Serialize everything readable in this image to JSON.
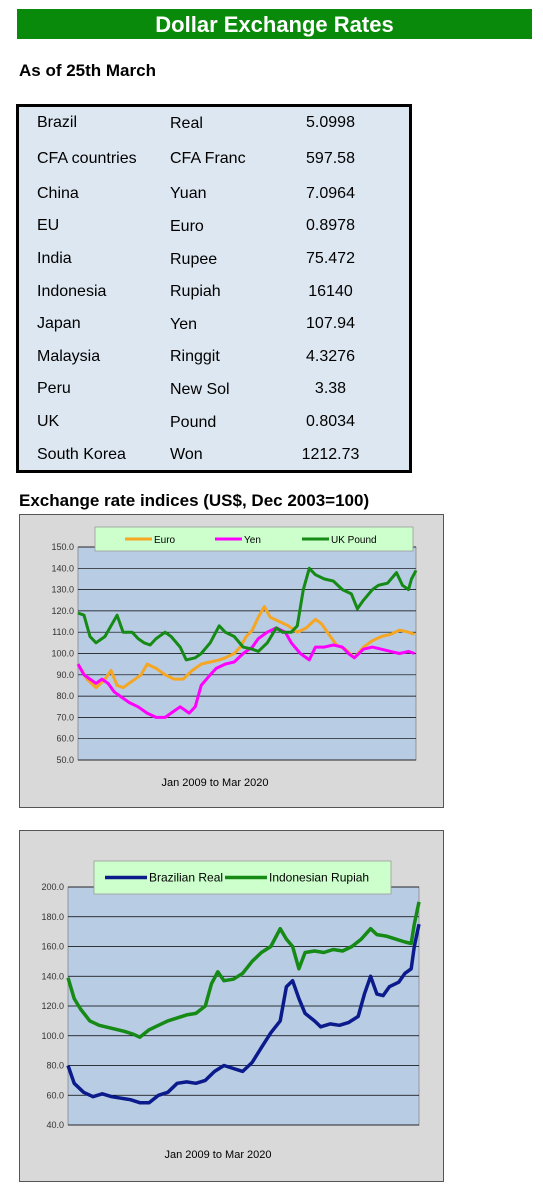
{
  "header": {
    "title": "Dollar Exchange Rates",
    "as_of": "As of 25th March"
  },
  "rates": [
    {
      "country": "Brazil",
      "currency": "Real",
      "rate": "5.0998"
    },
    {
      "country": "CFA countries",
      "currency": "CFA Franc",
      "rate": "597.58"
    },
    {
      "country": "China",
      "currency": "Yuan",
      "rate": "7.0964"
    },
    {
      "country": "EU",
      "currency": "Euro",
      "rate": "0.8978"
    },
    {
      "country": "India",
      "currency": "Rupee",
      "rate": "75.472"
    },
    {
      "country": "Indonesia",
      "currency": "Rupiah",
      "rate": "16140"
    },
    {
      "country": "Japan",
      "currency": "Yen",
      "rate": "107.94"
    },
    {
      "country": "Malaysia",
      "currency": "Ringgit",
      "rate": "4.3276"
    },
    {
      "country": "Peru",
      "currency": "New Sol",
      "rate": "3.38"
    },
    {
      "country": "UK",
      "currency": "Pound",
      "rate": "0.8034"
    },
    {
      "country": "South Korea",
      "currency": "Won",
      "rate": "1212.73"
    }
  ],
  "indices_title": "Exchange rate indices (US$, Dec 2003=100)",
  "chart_data": [
    {
      "type": "line",
      "title": "",
      "xlabel": "Jan 2009  to Mar 2020",
      "ylabel": "",
      "x_range": [
        2009.0,
        2020.25
      ],
      "ylim": [
        50,
        150
      ],
      "yticks": [
        "50.0",
        "60.0",
        "70.0",
        "80.0",
        "90.0",
        "100.0",
        "110.0",
        "120.0",
        "130.0",
        "140.0",
        "150.0"
      ],
      "grid": true,
      "legend": "top",
      "plot_bg": "#b8cce4",
      "series": [
        {
          "name": "Euro",
          "color": "#f5a623",
          "points": [
            [
              2009.0,
              95
            ],
            [
              2009.3,
              88
            ],
            [
              2009.6,
              84
            ],
            [
              2009.9,
              88
            ],
            [
              2010.1,
              92
            ],
            [
              2010.3,
              85
            ],
            [
              2010.5,
              84
            ],
            [
              2010.8,
              87
            ],
            [
              2011.1,
              90
            ],
            [
              2011.3,
              95
            ],
            [
              2011.6,
              93
            ],
            [
              2011.9,
              90
            ],
            [
              2012.2,
              88
            ],
            [
              2012.5,
              88
            ],
            [
              2012.8,
              92
            ],
            [
              2013.1,
              95
            ],
            [
              2013.4,
              96
            ],
            [
              2013.7,
              97
            ],
            [
              2013.9,
              98
            ],
            [
              2014.2,
              100
            ],
            [
              2014.4,
              103
            ],
            [
              2014.6,
              108
            ],
            [
              2014.8,
              111
            ],
            [
              2015.0,
              117
            ],
            [
              2015.2,
              122
            ],
            [
              2015.4,
              117
            ],
            [
              2015.7,
              115
            ],
            [
              2016.0,
              113
            ],
            [
              2016.3,
              110
            ],
            [
              2016.6,
              112
            ],
            [
              2016.9,
              116
            ],
            [
              2017.1,
              114
            ],
            [
              2017.4,
              108
            ],
            [
              2017.6,
              104
            ],
            [
              2017.9,
              102
            ],
            [
              2018.2,
              98
            ],
            [
              2018.5,
              103
            ],
            [
              2018.8,
              106
            ],
            [
              2019.1,
              108
            ],
            [
              2019.4,
              109
            ],
            [
              2019.7,
              111
            ],
            [
              2020.0,
              110
            ],
            [
              2020.2,
              109
            ]
          ]
        },
        {
          "name": "Yen",
          "color": "#ff00ff",
          "points": [
            [
              2009.0,
              95
            ],
            [
              2009.2,
              90
            ],
            [
              2009.4,
              88
            ],
            [
              2009.6,
              86
            ],
            [
              2009.8,
              88
            ],
            [
              2010.0,
              86
            ],
            [
              2010.2,
              82
            ],
            [
              2010.4,
              80
            ],
            [
              2010.7,
              77
            ],
            [
              2011.0,
              75
            ],
            [
              2011.3,
              72
            ],
            [
              2011.6,
              70
            ],
            [
              2011.9,
              70
            ],
            [
              2012.2,
              73
            ],
            [
              2012.4,
              75
            ],
            [
              2012.7,
              72
            ],
            [
              2012.9,
              75
            ],
            [
              2013.1,
              85
            ],
            [
              2013.4,
              90
            ],
            [
              2013.6,
              93
            ],
            [
              2013.9,
              95
            ],
            [
              2014.2,
              96
            ],
            [
              2014.5,
              100
            ],
            [
              2014.8,
              103
            ],
            [
              2015.0,
              107
            ],
            [
              2015.3,
              110
            ],
            [
              2015.6,
              112
            ],
            [
              2015.9,
              110
            ],
            [
              2016.1,
              105
            ],
            [
              2016.4,
              100
            ],
            [
              2016.7,
              97
            ],
            [
              2016.9,
              103
            ],
            [
              2017.2,
              103
            ],
            [
              2017.5,
              104
            ],
            [
              2017.8,
              103
            ],
            [
              2018.0,
              100
            ],
            [
              2018.2,
              98
            ],
            [
              2018.5,
              102
            ],
            [
              2018.8,
              103
            ],
            [
              2019.1,
              102
            ],
            [
              2019.4,
              101
            ],
            [
              2019.7,
              100
            ],
            [
              2020.0,
              101
            ],
            [
              2020.2,
              100
            ]
          ]
        },
        {
          "name": "UK Pound",
          "color": "#158a15",
          "points": [
            [
              2009.0,
              119
            ],
            [
              2009.2,
              118
            ],
            [
              2009.4,
              108
            ],
            [
              2009.6,
              105
            ],
            [
              2009.9,
              108
            ],
            [
              2010.1,
              113
            ],
            [
              2010.3,
              118
            ],
            [
              2010.5,
              110
            ],
            [
              2010.8,
              110
            ],
            [
              2011.0,
              107
            ],
            [
              2011.2,
              105
            ],
            [
              2011.4,
              104
            ],
            [
              2011.6,
              107
            ],
            [
              2011.9,
              110
            ],
            [
              2012.1,
              108
            ],
            [
              2012.4,
              103
            ],
            [
              2012.6,
              97
            ],
            [
              2012.9,
              98
            ],
            [
              2013.1,
              100
            ],
            [
              2013.4,
              105
            ],
            [
              2013.7,
              113
            ],
            [
              2013.9,
              110
            ],
            [
              2014.2,
              108
            ],
            [
              2014.5,
              103
            ],
            [
              2014.8,
              102
            ],
            [
              2015.0,
              101
            ],
            [
              2015.3,
              105
            ],
            [
              2015.6,
              112
            ],
            [
              2015.8,
              110
            ],
            [
              2016.1,
              110
            ],
            [
              2016.3,
              113
            ],
            [
              2016.5,
              130
            ],
            [
              2016.7,
              140
            ],
            [
              2016.9,
              137
            ],
            [
              2017.2,
              135
            ],
            [
              2017.5,
              134
            ],
            [
              2017.8,
              130
            ],
            [
              2018.1,
              128
            ],
            [
              2018.3,
              121
            ],
            [
              2018.5,
              125
            ],
            [
              2018.8,
              130
            ],
            [
              2019.0,
              132
            ],
            [
              2019.3,
              133
            ],
            [
              2019.6,
              138
            ],
            [
              2019.8,
              132
            ],
            [
              2020.0,
              130
            ],
            [
              2020.1,
              135
            ],
            [
              2020.25,
              139
            ]
          ]
        }
      ]
    },
    {
      "type": "line",
      "title": "",
      "xlabel": "Jan 2009  to Mar 2020",
      "ylabel": "",
      "x_range": [
        2009.0,
        2020.25
      ],
      "ylim": [
        40,
        200
      ],
      "yticks": [
        "40.0",
        "60.0",
        "80.0",
        "100.0",
        "120.0",
        "140.0",
        "160.0",
        "180.0",
        "200.0"
      ],
      "grid": true,
      "legend": "top",
      "plot_bg": "#b8cce4",
      "series": [
        {
          "name": "Brazilian Real",
          "color": "#0b1b8c",
          "points": [
            [
              2009.0,
              80
            ],
            [
              2009.2,
              68
            ],
            [
              2009.5,
              62
            ],
            [
              2009.8,
              59
            ],
            [
              2010.1,
              61
            ],
            [
              2010.4,
              59
            ],
            [
              2010.7,
              58
            ],
            [
              2011.0,
              57
            ],
            [
              2011.3,
              55
            ],
            [
              2011.6,
              55
            ],
            [
              2011.9,
              60
            ],
            [
              2012.2,
              62
            ],
            [
              2012.5,
              68
            ],
            [
              2012.8,
              69
            ],
            [
              2013.1,
              68
            ],
            [
              2013.4,
              70
            ],
            [
              2013.7,
              76
            ],
            [
              2014.0,
              80
            ],
            [
              2014.3,
              78
            ],
            [
              2014.6,
              76
            ],
            [
              2014.9,
              82
            ],
            [
              2015.2,
              92
            ],
            [
              2015.5,
              102
            ],
            [
              2015.8,
              110
            ],
            [
              2016.0,
              133
            ],
            [
              2016.2,
              137
            ],
            [
              2016.4,
              125
            ],
            [
              2016.6,
              115
            ],
            [
              2016.9,
              110
            ],
            [
              2017.1,
              106
            ],
            [
              2017.4,
              108
            ],
            [
              2017.7,
              107
            ],
            [
              2018.0,
              109
            ],
            [
              2018.3,
              113
            ],
            [
              2018.5,
              128
            ],
            [
              2018.7,
              140
            ],
            [
              2018.9,
              128
            ],
            [
              2019.1,
              127
            ],
            [
              2019.3,
              133
            ],
            [
              2019.6,
              136
            ],
            [
              2019.8,
              142
            ],
            [
              2020.0,
              145
            ],
            [
              2020.1,
              160
            ],
            [
              2020.25,
              175
            ]
          ]
        },
        {
          "name": "Indonesian Rupiah",
          "color": "#158a15",
          "points": [
            [
              2009.0,
              139
            ],
            [
              2009.2,
              125
            ],
            [
              2009.4,
              118
            ],
            [
              2009.7,
              110
            ],
            [
              2010.0,
              107
            ],
            [
              2010.4,
              105
            ],
            [
              2010.8,
              103
            ],
            [
              2011.1,
              101
            ],
            [
              2011.3,
              99
            ],
            [
              2011.6,
              104
            ],
            [
              2011.9,
              107
            ],
            [
              2012.2,
              110
            ],
            [
              2012.5,
              112
            ],
            [
              2012.8,
              114
            ],
            [
              2013.1,
              115
            ],
            [
              2013.4,
              120
            ],
            [
              2013.6,
              135
            ],
            [
              2013.8,
              143
            ],
            [
              2014.0,
              137
            ],
            [
              2014.3,
              138
            ],
            [
              2014.6,
              142
            ],
            [
              2014.9,
              150
            ],
            [
              2015.2,
              156
            ],
            [
              2015.5,
              160
            ],
            [
              2015.8,
              172
            ],
            [
              2016.0,
              165
            ],
            [
              2016.2,
              160
            ],
            [
              2016.4,
              145
            ],
            [
              2016.6,
              156
            ],
            [
              2016.9,
              157
            ],
            [
              2017.2,
              156
            ],
            [
              2017.5,
              158
            ],
            [
              2017.8,
              157
            ],
            [
              2018.1,
              160
            ],
            [
              2018.4,
              165
            ],
            [
              2018.7,
              172
            ],
            [
              2018.9,
              168
            ],
            [
              2019.2,
              167
            ],
            [
              2019.5,
              165
            ],
            [
              2019.8,
              163
            ],
            [
              2020.0,
              162
            ],
            [
              2020.1,
              175
            ],
            [
              2020.25,
              190
            ]
          ]
        }
      ]
    }
  ]
}
